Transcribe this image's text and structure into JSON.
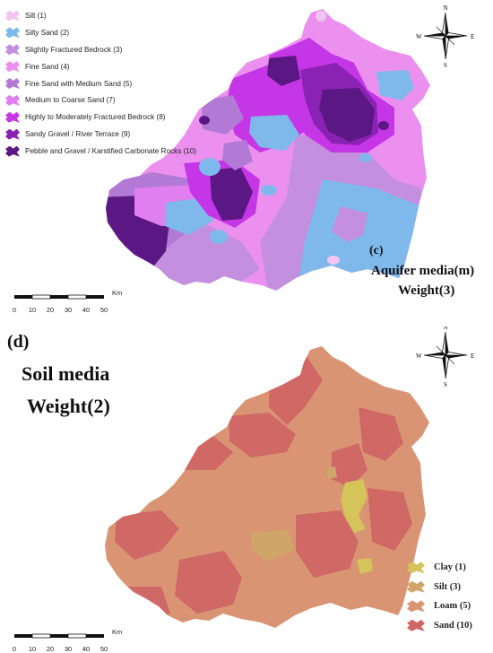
{
  "panel_c": {
    "panel_letter": "(c)",
    "title_line1": "Aquifer media(m)",
    "title_line2": "Weight(3)",
    "legend": [
      {
        "label": "Silt (1)",
        "color": "#f2c4f2"
      },
      {
        "label": "Silty Sand (2)",
        "color": "#7fb9ec"
      },
      {
        "label": "Slightly Fractured Bedrock (3)",
        "color": "#c48fdf"
      },
      {
        "label": "Fine Sand (4)",
        "color": "#eb90ef"
      },
      {
        "label": "Fine Sand with Medium Sand (5)",
        "color": "#b27ad4"
      },
      {
        "label": "Medium to Coarse Sand (7)",
        "color": "#e07ff0"
      },
      {
        "label": "Highly to Moderately Fractured Bedrock (8)",
        "color": "#c536e6"
      },
      {
        "label": "Sandy Gravel / River Terrace (9)",
        "color": "#8a22b3"
      },
      {
        "label": "Pebble and Gravel / Karstified Carbonate Rocks (10)",
        "color": "#5b1783"
      }
    ],
    "scale": {
      "ticks": [
        "0",
        "10",
        "20",
        "30",
        "40",
        "50"
      ],
      "unit": "Km"
    },
    "north_arrow": {
      "n": "N",
      "s": "S",
      "e": "E",
      "w": "W"
    }
  },
  "panel_d": {
    "panel_letter": "(d)",
    "title_line1": "Soil media",
    "title_line2": "Weight(2)",
    "legend": [
      {
        "label": "Clay (1)",
        "color": "#d4c45a"
      },
      {
        "label": "Silt (3)",
        "color": "#cfa56a"
      },
      {
        "label": "Loam (5)",
        "color": "#d99573"
      },
      {
        "label": "Sand (10)",
        "color": "#d06866"
      }
    ],
    "scale": {
      "ticks": [
        "0",
        "10",
        "20",
        "30",
        "40",
        "50"
      ],
      "unit": "Km"
    },
    "north_arrow": {
      "n": "N",
      "s": "S",
      "e": "E",
      "w": "W"
    }
  }
}
